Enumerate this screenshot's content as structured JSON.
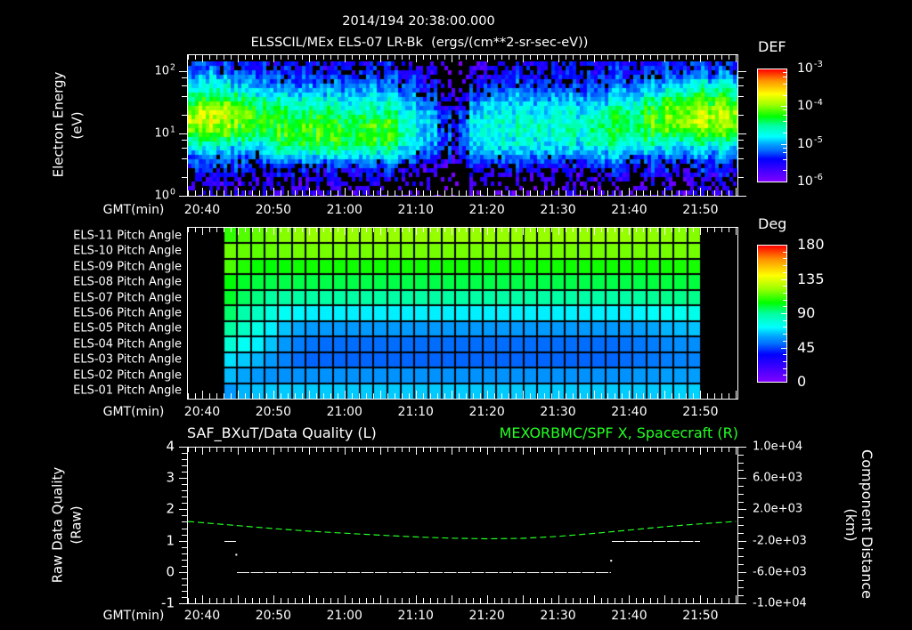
{
  "header": {
    "datetime": "2014/194 20:38:00.000",
    "title": "ELSSCIL/MEx ELS-07 LR-Bk  (ergs/(cm**2-sr-sec-eV))"
  },
  "colors": {
    "background": "#000000",
    "foreground": "#ffffff",
    "right_series": "#22ff22"
  },
  "colormap": [
    [
      0,
      "#7f00ff"
    ],
    [
      0.1,
      "#4000ff"
    ],
    [
      0.2,
      "#0000ff"
    ],
    [
      0.28,
      "#0070ff"
    ],
    [
      0.33,
      "#00a0ff"
    ],
    [
      0.4,
      "#00ffff"
    ],
    [
      0.5,
      "#00ffa0"
    ],
    [
      0.58,
      "#00ff00"
    ],
    [
      0.68,
      "#99ff00"
    ],
    [
      0.78,
      "#ffff00"
    ],
    [
      0.9,
      "#ff9000"
    ],
    [
      1.0,
      "#ff0000"
    ]
  ],
  "time_axis": {
    "label": "GMT(min)",
    "start": "20:38:00",
    "end": "21:55:20",
    "tick_labels": [
      "20:40",
      "20:50",
      "21:00",
      "21:10",
      "21:20",
      "21:30",
      "21:40",
      "21:50"
    ],
    "major_tick_minutes": 5,
    "minor_tick_minutes": 1
  },
  "panel_energy": {
    "ylabel": "Electron Energy",
    "yunit": "(eV)",
    "yticks": [
      {
        "base": "10",
        "exp": "2",
        "value": 100
      },
      {
        "base": "10",
        "exp": "1",
        "value": 10
      },
      {
        "base": "10",
        "exp": "0",
        "value": 1
      }
    ],
    "colorbar": {
      "title": "DEF",
      "ticks": [
        {
          "base": "10",
          "exp": "-3",
          "value": -3
        },
        {
          "base": "10",
          "exp": "-4",
          "value": -4
        },
        {
          "base": "10",
          "exp": "-5",
          "value": -5
        },
        {
          "base": "10",
          "exp": "-6",
          "value": -6
        }
      ]
    }
  },
  "panel_pitch": {
    "colorbar": {
      "title": "Deg",
      "ticks": [
        {
          "label": "180",
          "value": 180
        },
        {
          "label": "135",
          "value": 135
        },
        {
          "label": "90",
          "value": 90
        },
        {
          "label": "45",
          "value": 45
        },
        {
          "label": "0",
          "value": 0
        }
      ]
    }
  },
  "panel_quality": {
    "title_left": "SAF_BXuT/Data Quality (L)",
    "title_right": "MEXORBMC/SPF X, Spacecraft (R)",
    "ylabel_left": "Raw Data Quality",
    "yunit_left": "(Raw)",
    "ylabel_right": "Component Distance",
    "yunit_right": "(km)",
    "left_ticks": [
      {
        "label": "4",
        "value": 4
      },
      {
        "label": "3",
        "value": 3
      },
      {
        "label": "2",
        "value": 2
      },
      {
        "label": "1",
        "value": 1
      },
      {
        "label": "0",
        "value": 0
      },
      {
        "label": "-1",
        "value": -1
      }
    ],
    "right_ticks": [
      {
        "label": "1.0e+04",
        "value": 10000
      },
      {
        "label": "6.0e+03",
        "value": 6000
      },
      {
        "label": "2.0e+03",
        "value": 2000
      },
      {
        "label": "-2.0e+03",
        "value": -2000
      },
      {
        "label": "-6.0e+03",
        "value": -6000
      },
      {
        "label": "-1.0e+04",
        "value": -10000
      }
    ]
  },
  "chart_data": [
    {
      "type": "heatmap",
      "title": "ELSSCIL/MEx ELS-07 LR-Bk  (ergs/(cm**2-sr-sec-eV))",
      "xlabel": "GMT(min)",
      "ylabel": "Electron Energy (eV)",
      "yscale": "log",
      "ylim": [
        1,
        186
      ],
      "x_start": "20:38:00",
      "x_bin_minutes": 3,
      "energy_bins_eV": [
        117,
        78,
        51,
        34,
        22,
        15,
        9.8,
        6.5,
        4.3,
        2.8,
        1.9,
        1.2
      ],
      "z_label": "DEF",
      "zscale": "log",
      "zlim": [
        1e-06,
        0.001
      ],
      "z_log10_by_time": [
        [
          -5.3,
          -5.0,
          -4.7,
          -4.3,
          -3.9,
          -3.85,
          -4.2,
          -4.7,
          -5.2,
          -5.4,
          -5.6,
          -5.7
        ],
        [
          -5.3,
          -5.0,
          -4.6,
          -4.2,
          -3.85,
          -3.9,
          -4.2,
          -4.7,
          -5.1,
          -5.4,
          -5.6,
          -5.7
        ],
        [
          -5.4,
          -5.1,
          -4.8,
          -4.4,
          -4.0,
          -4.05,
          -4.3,
          -4.8,
          -5.2,
          -5.4,
          -5.6,
          -5.8
        ],
        [
          -5.4,
          -5.2,
          -4.9,
          -4.55,
          -4.2,
          -4.15,
          -4.3,
          -4.7,
          -5.1,
          -5.4,
          -5.6,
          -5.8
        ],
        [
          -5.5,
          -5.3,
          -5.0,
          -4.7,
          -4.4,
          -4.25,
          -4.25,
          -4.4,
          -4.9,
          -5.4,
          -5.6,
          -5.8
        ],
        [
          -5.5,
          -5.3,
          -5.0,
          -4.7,
          -4.4,
          -4.2,
          -4.2,
          -4.35,
          -4.9,
          -5.4,
          -5.6,
          -5.8
        ],
        [
          -5.5,
          -5.3,
          -5.0,
          -4.75,
          -4.45,
          -4.25,
          -4.2,
          -4.3,
          -4.85,
          -5.4,
          -5.6,
          -5.8
        ],
        [
          -5.5,
          -5.3,
          -5.0,
          -4.8,
          -4.5,
          -4.3,
          -4.25,
          -4.35,
          -4.85,
          -5.4,
          -5.6,
          -5.8
        ],
        [
          -5.5,
          -5.3,
          -5.05,
          -4.8,
          -4.55,
          -4.3,
          -4.25,
          -4.4,
          -4.9,
          -5.4,
          -5.6,
          -5.8
        ],
        [
          -5.5,
          -5.3,
          -5.05,
          -4.8,
          -4.55,
          -4.3,
          -4.25,
          -4.4,
          -4.9,
          -5.4,
          -5.6,
          -5.8
        ],
        [
          -5.6,
          -5.45,
          -5.25,
          -5.05,
          -4.85,
          -4.7,
          -4.7,
          -4.8,
          -5.15,
          -5.55,
          -5.75,
          -5.85
        ],
        [
          -5.65,
          -5.55,
          -5.45,
          -5.3,
          -5.15,
          -5.0,
          -5.0,
          -5.1,
          -5.35,
          -5.7,
          -5.9,
          -6.0
        ],
        [
          -6.1,
          -6.0,
          -5.9,
          -5.75,
          -5.55,
          -5.45,
          -5.45,
          -5.5,
          -5.65,
          -5.85,
          -6.0,
          -6.1
        ],
        [
          -5.75,
          -5.6,
          -5.4,
          -5.15,
          -4.9,
          -4.75,
          -4.7,
          -4.8,
          -5.05,
          -5.5,
          -5.75,
          -5.85
        ],
        [
          -5.6,
          -5.5,
          -5.3,
          -5.0,
          -4.8,
          -4.7,
          -4.7,
          -4.8,
          -5.1,
          -5.5,
          -5.7,
          -5.8
        ],
        [
          -5.5,
          -5.4,
          -5.2,
          -4.95,
          -4.75,
          -4.65,
          -4.65,
          -4.75,
          -5.1,
          -5.5,
          -5.7,
          -5.8
        ],
        [
          -5.5,
          -5.4,
          -5.2,
          -4.95,
          -4.75,
          -4.6,
          -4.6,
          -4.75,
          -5.1,
          -5.5,
          -5.7,
          -5.8
        ],
        [
          -5.5,
          -5.4,
          -5.2,
          -4.95,
          -4.75,
          -4.65,
          -4.65,
          -4.8,
          -5.15,
          -5.5,
          -5.7,
          -5.8
        ],
        [
          -5.5,
          -5.4,
          -5.2,
          -4.95,
          -4.75,
          -4.6,
          -4.6,
          -4.75,
          -5.1,
          -5.5,
          -5.7,
          -5.8
        ],
        [
          -5.5,
          -5.35,
          -5.15,
          -4.9,
          -4.6,
          -4.45,
          -4.45,
          -4.6,
          -5.0,
          -5.4,
          -5.7,
          -5.8
        ],
        [
          -5.45,
          -5.3,
          -5.05,
          -4.75,
          -4.5,
          -4.4,
          -4.45,
          -4.65,
          -5.05,
          -5.4,
          -5.7,
          -5.8
        ],
        [
          -5.4,
          -5.2,
          -4.9,
          -4.55,
          -4.25,
          -4.2,
          -4.35,
          -4.65,
          -5.1,
          -5.4,
          -5.6,
          -5.8
        ],
        [
          -5.35,
          -5.1,
          -4.75,
          -4.3,
          -4.0,
          -4.0,
          -4.25,
          -4.7,
          -5.1,
          -5.4,
          -5.6,
          -5.8
        ],
        [
          -5.3,
          -5.0,
          -4.65,
          -4.2,
          -3.9,
          -3.9,
          -4.2,
          -4.7,
          -5.1,
          -5.4,
          -5.6,
          -5.7
        ],
        [
          -5.3,
          -5.0,
          -4.6,
          -4.15,
          -3.85,
          -3.85,
          -4.2,
          -4.7,
          -5.1,
          -5.4,
          -5.6,
          -5.7
        ],
        [
          -5.3,
          -5.0,
          -4.6,
          -4.2,
          -3.85,
          -3.9,
          -4.2,
          -4.7,
          -5.1,
          -5.4,
          -5.6,
          -5.7
        ]
      ]
    },
    {
      "type": "heatmap",
      "title": "Pitch Angle",
      "xlabel": "GMT(min)",
      "x_start": "20:43:00",
      "x_end": "21:50:04",
      "z_label": "Deg",
      "zlim": [
        0,
        180
      ],
      "rows": [
        {
          "label": "ELS-11 Pitch Angle",
          "values": [
            110,
            114,
            116,
            118,
            120,
            121,
            122,
            122,
            122,
            122,
            122,
            122,
            122,
            122,
            122,
            122,
            122,
            122,
            122,
            122,
            122,
            122,
            122,
            122,
            122,
            122,
            122,
            122,
            122,
            122,
            121,
            121,
            121,
            120,
            120
          ]
        },
        {
          "label": "ELS-10 Pitch Angle",
          "values": [
            117,
            116,
            115,
            116,
            117,
            118,
            118,
            118,
            118,
            118,
            118,
            118,
            118,
            118,
            118,
            118,
            118,
            118,
            118,
            118,
            118,
            118,
            118,
            118,
            118,
            118,
            118,
            118,
            118,
            118,
            118,
            118,
            118,
            118,
            118
          ]
        },
        {
          "label": "ELS-09 Pitch Angle",
          "values": [
            113,
            108,
            105,
            104,
            105,
            106,
            106,
            106,
            106,
            106,
            106,
            106,
            106,
            106,
            106,
            106,
            106,
            106,
            106,
            106,
            106,
            106,
            106,
            106,
            106,
            106,
            106,
            106,
            106,
            106,
            106,
            106,
            106,
            107,
            107
          ]
        },
        {
          "label": "ELS-08 Pitch Angle",
          "values": [
            104,
            101,
            99,
            98,
            98,
            98,
            98,
            98,
            98,
            98,
            98,
            98,
            98,
            98,
            98,
            98,
            98,
            98,
            98,
            98,
            98,
            98,
            98,
            98,
            98,
            98,
            98,
            98,
            98,
            98,
            98,
            99,
            99,
            99,
            99
          ]
        },
        {
          "label": "ELS-07 Pitch Angle",
          "values": [
            101,
            96,
            93,
            90,
            89,
            89,
            89,
            89,
            89,
            89,
            89,
            89,
            89,
            89,
            89,
            89,
            89,
            89,
            89,
            89,
            89,
            89,
            89,
            89,
            89,
            89,
            89,
            89,
            89,
            89,
            90,
            91,
            92,
            92,
            92
          ]
        },
        {
          "label": "ELS-06 Pitch Angle",
          "values": [
            95,
            88,
            84,
            78,
            74,
            71,
            70,
            70,
            70,
            70,
            70,
            70,
            70,
            70,
            70,
            70,
            70,
            70,
            70,
            70,
            70,
            70,
            70,
            70,
            70,
            70,
            70,
            70,
            70,
            70,
            71,
            73,
            74,
            75,
            76
          ]
        },
        {
          "label": "ELS-05 Pitch Angle",
          "values": [
            90,
            83,
            77,
            70,
            64,
            60,
            58,
            58,
            58,
            58,
            58,
            58,
            58,
            58,
            58,
            58,
            58,
            58,
            58,
            58,
            58,
            58,
            58,
            58,
            58,
            58,
            58,
            58,
            58,
            58,
            59,
            60,
            62,
            63,
            64
          ]
        },
        {
          "label": "ELS-04 Pitch Angle",
          "values": [
            80,
            74,
            70,
            64,
            58,
            53,
            51,
            50,
            50,
            50,
            50,
            50,
            50,
            50,
            50,
            50,
            50,
            50,
            50,
            50,
            50,
            50,
            50,
            50,
            50,
            50,
            50,
            50,
            50,
            51,
            52,
            53,
            55,
            56,
            56
          ]
        },
        {
          "label": "ELS-03 Pitch Angle",
          "values": [
            68,
            65,
            62,
            58,
            54,
            50,
            49,
            49,
            49,
            49,
            49,
            49,
            49,
            49,
            49,
            49,
            49,
            49,
            49,
            49,
            49,
            49,
            49,
            49,
            49,
            49,
            49,
            49,
            49,
            50,
            51,
            52,
            53,
            54,
            54
          ]
        },
        {
          "label": "ELS-02 Pitch Angle",
          "values": [
            63,
            60,
            58,
            57,
            57,
            57,
            57,
            57,
            57,
            57,
            57,
            57,
            57,
            57,
            57,
            57,
            57,
            57,
            57,
            57,
            57,
            57,
            57,
            57,
            57,
            57,
            57,
            57,
            57,
            57,
            58,
            58,
            59,
            59,
            59
          ]
        },
        {
          "label": "ELS-01 Pitch Angle",
          "values": [
            58,
            62,
            64,
            65,
            65,
            65,
            65,
            65,
            65,
            65,
            65,
            65,
            65,
            65,
            65,
            65,
            65,
            65,
            65,
            65,
            65,
            65,
            65,
            65,
            65,
            65,
            65,
            65,
            65,
            65,
            65,
            65,
            66,
            66,
            66
          ]
        }
      ]
    },
    {
      "type": "line",
      "title_left": "SAF_BXuT/Data Quality (L)",
      "title_right": "MEXORBMC/SPF X, Spacecraft (R)",
      "xlabel": "GMT(min)",
      "ylabel_left": "Raw Data Quality (Raw)",
      "ylim_left": [
        -1,
        4
      ],
      "ylabel_right": "Component Distance (km)",
      "ylim_right": [
        -10000,
        10000
      ],
      "series": [
        {
          "name": "SAF_BXuT/Data Quality",
          "axis": "left",
          "color": "#ffffff",
          "segments": [
            {
              "from": "20:43:08",
              "to": "20:44:45",
              "value": 1
            },
            {
              "from": "20:44:53",
              "to": "21:37:26",
              "value": 0
            },
            {
              "from": "21:37:34",
              "to": "21:49:57",
              "value": 1
            }
          ],
          "points": [
            {
              "time": "20:44:48",
              "value": 0.55
            },
            {
              "time": "21:37:28",
              "value": 0.36
            }
          ]
        },
        {
          "name": "MEXORBMC/SPF X, Spacecraft",
          "axis": "right",
          "color": "#22ff22",
          "style": "dashed",
          "points": [
            [
              "20:38:00",
              450
            ],
            [
              "20:45:00",
              -80
            ],
            [
              "20:50:00",
              -450
            ],
            [
              "20:55:00",
              -780
            ],
            [
              "21:00:00",
              -1050
            ],
            [
              "21:05:00",
              -1300
            ],
            [
              "21:10:00",
              -1520
            ],
            [
              "21:15:00",
              -1680
            ],
            [
              "21:20:00",
              -1760
            ],
            [
              "21:25:00",
              -1700
            ],
            [
              "21:30:00",
              -1450
            ],
            [
              "21:35:00",
              -1080
            ],
            [
              "21:40:00",
              -650
            ],
            [
              "21:45:00",
              -220
            ],
            [
              "21:50:00",
              150
            ],
            [
              "21:55:00",
              450
            ]
          ]
        }
      ]
    }
  ]
}
